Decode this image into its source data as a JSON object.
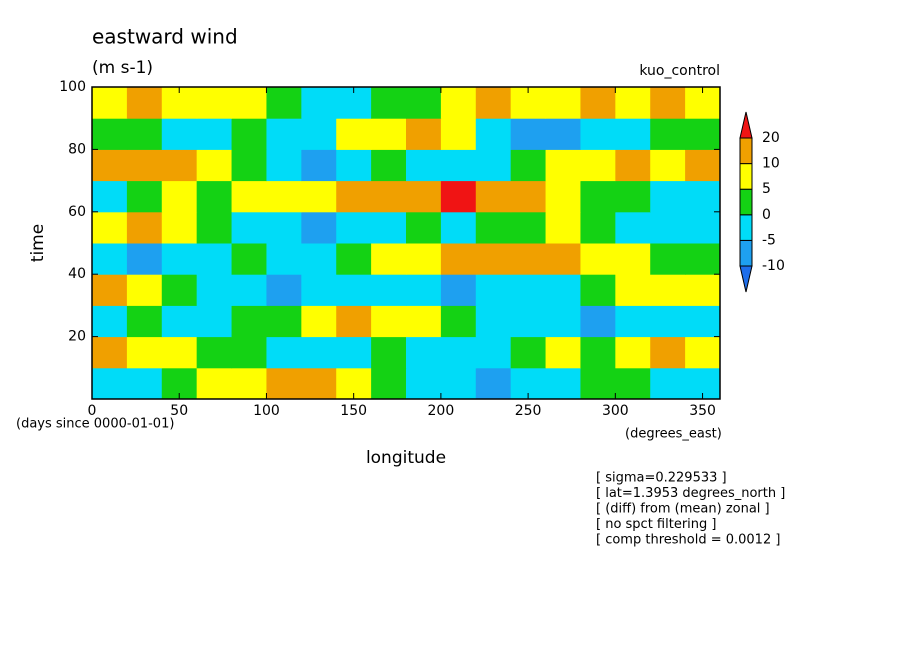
{
  "chart_data": {
    "type": "contour",
    "title": "eastward wind",
    "subtitle": "(m s-1)",
    "annotation": "kuo_control",
    "x_label": "longitude",
    "y_label": "time",
    "x_units": "(degrees_east)",
    "y_units": "(days since 0000-01-01)",
    "notes": [
      "[ sigma=0.229533 ]",
      "[ lat=1.3953 degrees_north ]",
      "[ (diff) from (mean) zonal ]",
      "[ no spct filtering ]",
      "[ comp threshold = 0.0012 ]"
    ],
    "x": [
      10,
      30,
      50,
      70,
      90,
      110,
      130,
      150,
      170,
      190,
      210,
      230,
      250,
      270,
      290,
      310,
      330,
      350
    ],
    "y": [
      5,
      15,
      25,
      35,
      45,
      55,
      65,
      75,
      85,
      95
    ],
    "z": [
      [
        -5,
        -2,
        2,
        5,
        8,
        10,
        12,
        8,
        2,
        -3,
        -5,
        -8,
        -5,
        -2,
        0,
        2,
        -3,
        -5
      ],
      [
        10,
        8,
        5,
        2,
        0,
        -3,
        -5,
        -3,
        0,
        -3,
        -5,
        -3,
        2,
        5,
        2,
        8,
        10,
        5
      ],
      [
        -3,
        0,
        -5,
        -2,
        2,
        0,
        5,
        10,
        8,
        5,
        2,
        -2,
        -5,
        -3,
        -8,
        -5,
        -3,
        -5
      ],
      [
        10,
        8,
        2,
        -3,
        -5,
        -8,
        -5,
        -3,
        -2,
        -5,
        -8,
        -5,
        -3,
        -5,
        2,
        5,
        8,
        5
      ],
      [
        -5,
        -8,
        -5,
        -3,
        0,
        -2,
        -3,
        2,
        5,
        8,
        10,
        12,
        10,
        12,
        8,
        5,
        2,
        0
      ],
      [
        5,
        12,
        8,
        2,
        -3,
        -5,
        -8,
        -5,
        -3,
        0,
        -2,
        0,
        3,
        5,
        2,
        -2,
        -5,
        -5
      ],
      [
        -3,
        0,
        5,
        2,
        5,
        8,
        5,
        10,
        12,
        18,
        20,
        15,
        10,
        5,
        2,
        0,
        -2,
        -5
      ],
      [
        15,
        18,
        12,
        8,
        2,
        -5,
        -8,
        -5,
        0,
        -2,
        -5,
        -3,
        0,
        5,
        8,
        10,
        8,
        12
      ],
      [
        2,
        0,
        -3,
        -2,
        0,
        -3,
        -2,
        5,
        8,
        10,
        5,
        -5,
        -8,
        -10,
        -5,
        -3,
        0,
        2
      ],
      [
        8,
        10,
        8,
        6,
        5,
        2,
        -2,
        -4,
        0,
        3,
        8,
        10,
        6,
        8,
        10,
        8,
        10,
        5
      ]
    ],
    "levels": [
      -10,
      -5,
      0,
      5,
      10,
      20
    ],
    "colors": [
      "#1e6eeb",
      "#1ea0f0",
      "#00dcf8",
      "#14d214",
      "#ffff00",
      "#f0a000",
      "#f01414"
    ],
    "xlim": [
      0,
      360
    ],
    "ylim": [
      0,
      100
    ],
    "xticks": [
      0,
      50,
      100,
      150,
      200,
      250,
      300,
      350
    ],
    "yticks": [
      20,
      40,
      60,
      80,
      100
    ]
  }
}
